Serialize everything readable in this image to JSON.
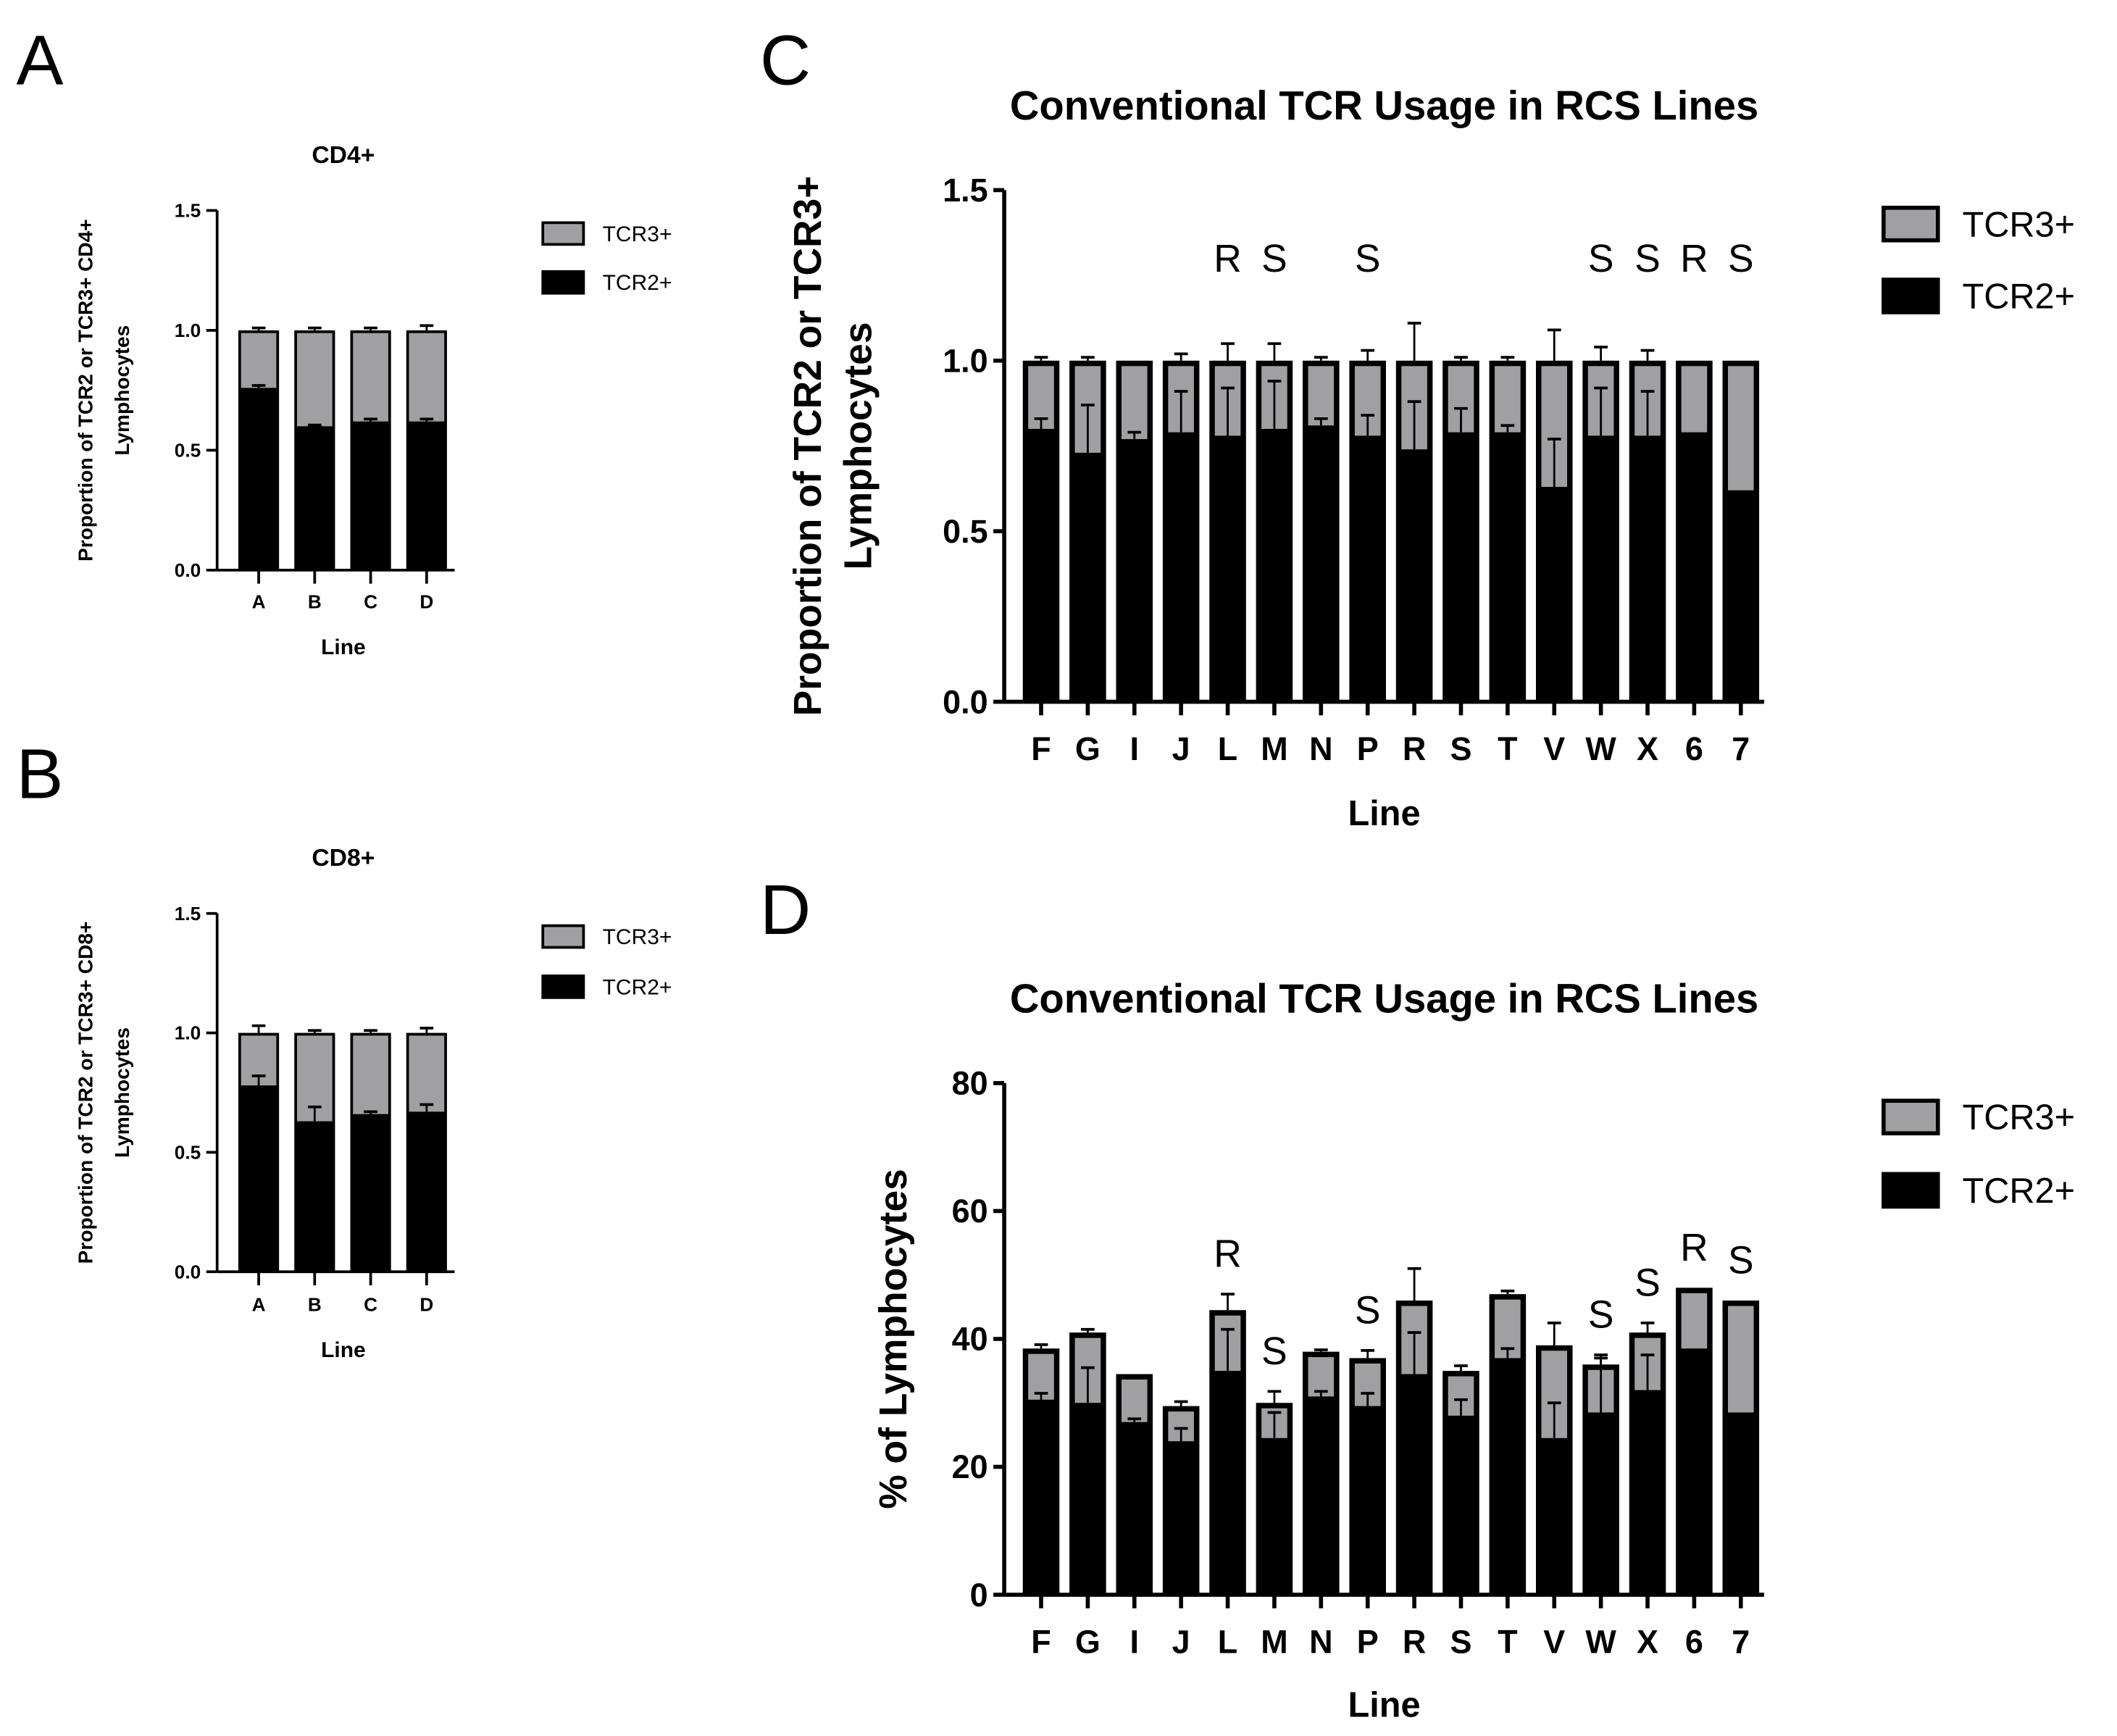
{
  "panel_letters": [
    "A",
    "B",
    "C",
    "D"
  ],
  "colors": {
    "tcr2": "#000000",
    "tcr3": "#a0a0a2"
  },
  "chart_data": [
    {
      "id": "A",
      "type": "bar",
      "stacked": true,
      "title": "CD4+",
      "xlabel": "Line",
      "ylabel": [
        "Proportion of TCR2 or TCR3+ CD4+",
        "Lymphocytes"
      ],
      "ylim": [
        0,
        1.5
      ],
      "yticks": [
        "0.0",
        "0.5",
        "1.0",
        "1.5"
      ],
      "ytick_values": [
        0,
        0.5,
        1,
        1.5
      ],
      "categories": [
        "A",
        "B",
        "C",
        "D"
      ],
      "series": [
        {
          "name": "TCR2+",
          "values": [
            0.76,
            0.6,
            0.62,
            0.62
          ]
        },
        {
          "name": "TCR3+",
          "values": [
            0.24,
            0.4,
            0.38,
            0.38
          ]
        }
      ],
      "total_err": [
        0.01,
        0.01,
        0.01,
        0.02
      ],
      "tcr2_err": [
        0.01,
        0.005,
        0.01,
        0.01
      ],
      "legend": [
        "TCR3+",
        "TCR2+"
      ],
      "annotations": [
        "",
        "",
        "",
        ""
      ]
    },
    {
      "id": "B",
      "type": "bar",
      "stacked": true,
      "title": "CD8+",
      "xlabel": "Line",
      "ylabel": [
        "Proportion of TCR2 or TCR3+ CD8+",
        "Lymphocytes"
      ],
      "ylim": [
        0,
        1.5
      ],
      "yticks": [
        "0.0",
        "0.5",
        "1.0",
        "1.5"
      ],
      "ytick_values": [
        0,
        0.5,
        1,
        1.5
      ],
      "categories": [
        "A",
        "B",
        "C",
        "D"
      ],
      "series": [
        {
          "name": "TCR2+",
          "values": [
            0.78,
            0.63,
            0.66,
            0.67
          ]
        },
        {
          "name": "TCR3+",
          "values": [
            0.22,
            0.37,
            0.34,
            0.33
          ]
        }
      ],
      "total_err": [
        0.03,
        0.01,
        0.01,
        0.02
      ],
      "tcr2_err": [
        0.04,
        0.06,
        0.01,
        0.03
      ],
      "legend": [
        "TCR3+",
        "TCR2+"
      ],
      "annotations": [
        "",
        "",
        "",
        ""
      ]
    },
    {
      "id": "C",
      "type": "bar",
      "stacked": true,
      "title": "Conventional TCR Usage in RCS Lines",
      "xlabel": "Line",
      "ylabel": [
        "Proportion of TCR2 or TCR3+",
        "Lymphocytes"
      ],
      "ylim": [
        0,
        1.5
      ],
      "yticks": [
        "0.0",
        "0.5",
        "1.0",
        "1.5"
      ],
      "ytick_values": [
        0,
        0.5,
        1,
        1.5
      ],
      "categories": [
        "F",
        "G",
        "I",
        "J",
        "L",
        "M",
        "N",
        "P",
        "R",
        "S",
        "T",
        "V",
        "W",
        "X",
        "6",
        "7"
      ],
      "series": [
        {
          "name": "TCR2+",
          "values": [
            0.8,
            0.73,
            0.77,
            0.79,
            0.78,
            0.8,
            0.81,
            0.78,
            0.74,
            0.79,
            0.79,
            0.63,
            0.78,
            0.78,
            0.79,
            0.62
          ]
        },
        {
          "name": "TCR3+",
          "values": [
            0.2,
            0.27,
            0.23,
            0.21,
            0.22,
            0.2,
            0.19,
            0.22,
            0.26,
            0.21,
            0.21,
            0.37,
            0.22,
            0.22,
            0.21,
            0.38
          ]
        }
      ],
      "total_err": [
        0.01,
        0.01,
        0,
        0.02,
        0.05,
        0.05,
        0.01,
        0.03,
        0.11,
        0.01,
        0.01,
        0.09,
        0.04,
        0.03,
        0,
        0
      ],
      "tcr2_err": [
        0.03,
        0.14,
        0.02,
        0.12,
        0.14,
        0.14,
        0.02,
        0.06,
        0.14,
        0.07,
        0.02,
        0.14,
        0.14,
        0.13,
        0,
        0
      ],
      "legend": [
        "TCR3+",
        "TCR2+"
      ],
      "annotations": [
        "",
        "",
        "",
        "",
        "R",
        "S",
        "",
        "S",
        "",
        "",
        "",
        "",
        "S",
        "S",
        "R",
        "S"
      ]
    },
    {
      "id": "D",
      "type": "bar",
      "stacked": true,
      "title": "Conventional TCR Usage in RCS Lines",
      "xlabel": "Line",
      "ylabel": [
        "% of Lymphocytes"
      ],
      "ylim": [
        0,
        80
      ],
      "yticks": [
        "0",
        "20",
        "40",
        "60",
        "80"
      ],
      "ytick_values": [
        0,
        20,
        40,
        60,
        80
      ],
      "categories": [
        "F",
        "G",
        "I",
        "J",
        "L",
        "M",
        "N",
        "P",
        "R",
        "S",
        "T",
        "V",
        "W",
        "X",
        "6",
        "7"
      ],
      "series": [
        {
          "name": "TCR2+",
          "values": [
            30.5,
            30,
            27,
            24,
            35,
            24.5,
            31,
            29.5,
            34.5,
            28,
            37,
            24.5,
            28.5,
            32,
            38.5,
            28.5
          ]
        },
        {
          "name": "TCR3+",
          "values": [
            8,
            11,
            7.5,
            5.5,
            9.5,
            5.5,
            7,
            7.5,
            11.5,
            7,
            10,
            14.5,
            7.5,
            9,
            9.5,
            17.5
          ]
        }
      ],
      "total_err": [
        0.6,
        0.5,
        0,
        0.7,
        2.5,
        1.8,
        0.3,
        1.2,
        5,
        0.8,
        0.5,
        3.5,
        1.5,
        1.5,
        0,
        0
      ],
      "tcr2_err": [
        1,
        5.5,
        0.5,
        2,
        6.5,
        4,
        0.8,
        2,
        6.5,
        2.5,
        1.5,
        5.5,
        8.5,
        5.5,
        0,
        0
      ],
      "legend": [
        "TCR3+",
        "TCR2+"
      ],
      "annotations": [
        "",
        "",
        "",
        "",
        "R",
        "S",
        "",
        "S",
        "",
        "",
        "",
        "",
        "S",
        "S",
        "R",
        "S"
      ]
    }
  ]
}
